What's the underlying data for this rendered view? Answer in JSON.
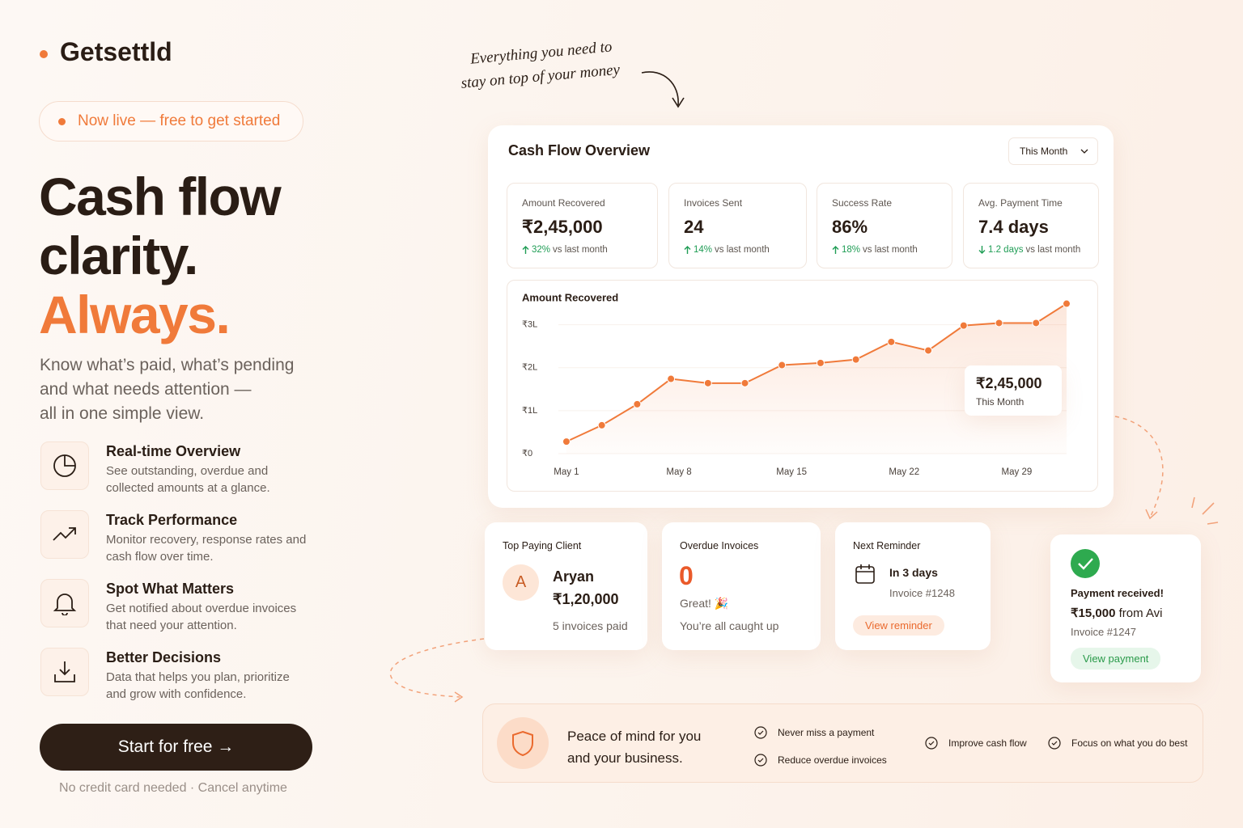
{
  "brand": "Getsettld",
  "badge": "Now live — free to get started",
  "hero": {
    "line1": "Cash flow",
    "line2": "clarity.",
    "line3": "Always.",
    "subtitle": [
      "Know what’s paid, what’s pending",
      "and what needs attention —",
      "all in one simple view."
    ]
  },
  "features": [
    {
      "title": "Real-time Overview",
      "text": "See outstanding, overdue and collected amounts at a glance."
    },
    {
      "title": "Track Performance",
      "text": "Monitor recovery, response rates and cash flow over time."
    },
    {
      "title": "Spot What Matters",
      "text": "Get notified about overdue invoices that need your attention."
    },
    {
      "title": "Better Decisions",
      "text": "Data that helps you plan, prioritize and grow with confidence."
    }
  ],
  "cta": "Start for free →",
  "cta_note": "No credit card needed · Cancel anytime",
  "annotation": [
    "Everything you need to",
    "stay on top of your money"
  ],
  "dashboard": {
    "title": "Cash Flow Overview",
    "period": "This Month",
    "stats": [
      {
        "label": "Amount Recovered",
        "value": "₹2,45,000",
        "change": "32%",
        "change_text": "vs last month",
        "trend": "up"
      },
      {
        "label": "Invoices Sent",
        "value": "24",
        "change": "14%",
        "change_text": "vs last month",
        "trend": "up"
      },
      {
        "label": "Success Rate",
        "value": "86%",
        "change": "18%",
        "change_text": "vs last month",
        "trend": "up"
      },
      {
        "label": "Avg. Payment Time",
        "value": "7.4 days",
        "change": "1.2 days",
        "change_text": "vs last month",
        "trend": "down"
      }
    ]
  },
  "chart_data": {
    "type": "line",
    "title": "Amount Recovered",
    "x": [
      1,
      3.2,
      5.4,
      7.5,
      9.8,
      12.1,
      14.4,
      16.8,
      19,
      21.2,
      23.5,
      25.7,
      27.9,
      30.2,
      32.1
    ],
    "values": [
      28000,
      66000,
      115000,
      174000,
      164000,
      164000,
      206000,
      211000,
      219000,
      260000,
      240000,
      298000,
      304000,
      304000,
      349000
    ],
    "color": "#f07a3a",
    "xlim": [
      0.5,
      32.1
    ],
    "xticks": [
      {
        "value": 1,
        "label": "May 1"
      },
      {
        "value": 8,
        "label": "May 8"
      },
      {
        "value": 15,
        "label": "May 15"
      },
      {
        "value": 22,
        "label": "May 22"
      },
      {
        "value": 29,
        "label": "May 29"
      }
    ],
    "ylim": [
      0,
      350000
    ],
    "yticks": [
      {
        "value": 0,
        "label": "₹0"
      },
      {
        "value": 100000,
        "label": "₹1L"
      },
      {
        "value": 200000,
        "label": "₹2L"
      },
      {
        "value": 300000,
        "label": "₹3L"
      }
    ],
    "callout": {
      "text": "₹2,45,000",
      "subtext": "This Month"
    }
  },
  "cards": {
    "top_client": {
      "title": "Top Paying Client",
      "initial": "A",
      "name": "Aryan",
      "amount": "₹1,20,000",
      "note": "5 invoices paid"
    },
    "overdue": {
      "title": "Overdue Invoices",
      "count": "0",
      "status": "Great! 🎉",
      "note": "You’re all caught up"
    },
    "reminder": {
      "title": "Next Reminder",
      "when": "In 3 days",
      "invoice": "Invoice #1248",
      "action": "View reminder"
    },
    "payment": {
      "title": "Payment received!",
      "amount": "₹15,000",
      "from": "from Avi",
      "invoice": "Invoice #1247",
      "action": "View payment"
    }
  },
  "banner": {
    "title": [
      "Peace of mind for you",
      "and your business."
    ],
    "items": [
      "Never miss a payment",
      "Reduce overdue invoices",
      "Improve cash flow",
      "Focus on what you do best"
    ]
  }
}
